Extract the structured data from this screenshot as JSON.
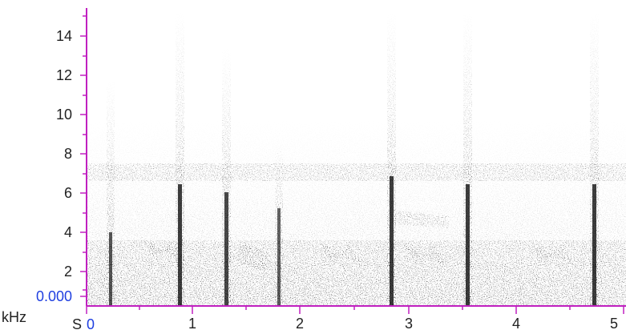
{
  "spectrogram": {
    "x_unit": "S",
    "y_unit": "kHz",
    "x_origin_label": "0",
    "y_origin_label": "0.000",
    "origin_label_color": "#1f3fe0",
    "axis_color": "#c020c0",
    "y_ticks": [
      "14",
      "12",
      "10",
      "8",
      "6",
      "4",
      "2"
    ],
    "x_ticks": [
      "1",
      "2",
      "3",
      "4",
      "5"
    ]
  }
}
